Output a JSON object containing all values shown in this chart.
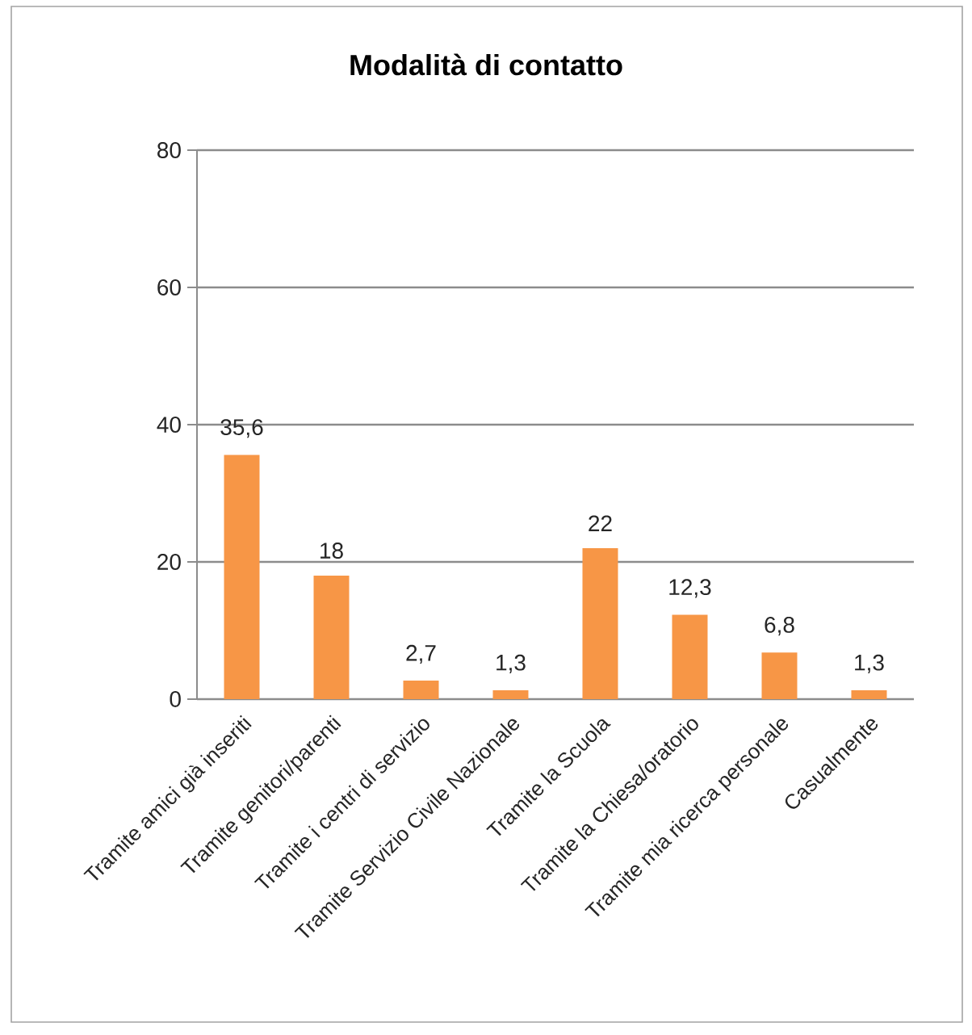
{
  "chart_data": {
    "type": "bar",
    "title": "Modalità di contatto",
    "categories": [
      "Tramite amici già inseriti",
      "Tramite genitori/parenti",
      "Tramite i centri di servizio",
      "Tramite Servizio Civile Nazionale",
      "Tramite la Scuola",
      "Tramite la Chiesa/oratorio",
      "Tramite mia ricerca personale",
      "Casualmente"
    ],
    "values": [
      35.6,
      18,
      2.7,
      1.3,
      22,
      12.3,
      6.8,
      1.3
    ],
    "value_labels": [
      "35,6",
      "18",
      "2,7",
      "1,3",
      "22",
      "12,3",
      "6,8",
      "1,3"
    ],
    "color": "#f79646",
    "ylim": [
      0,
      80
    ],
    "yticks": [
      0,
      20,
      40,
      60,
      80
    ],
    "grid": "y"
  }
}
